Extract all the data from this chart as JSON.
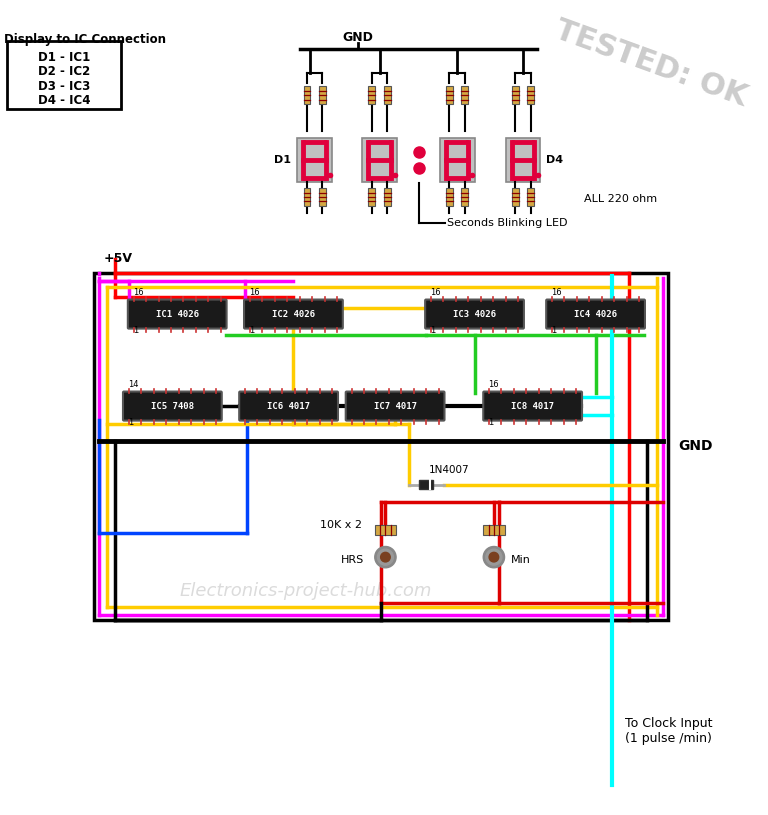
{
  "bg_color": "#ffffff",
  "ic_color": "#1a1a1a",
  "ic_text_color": "#ffffff",
  "display_color": "#e0003c",
  "resistor_body": "#d4a843",
  "watermark": "Electronics-project-hub.com",
  "tested_text": "TESTED: OK",
  "gnd_label": "GND",
  "vcc_label": "+5V",
  "all_ohm_label": "ALL 220 ohm",
  "seconds_led_label": "Seconds Blinking LED",
  "clock_input_label": "To Clock Input\n(1 pulse /min)",
  "gnd_right_label": "GND",
  "diode_label": "1N4007",
  "resistor_label": "10K x 2",
  "hrs_label": "HRS",
  "min_label": "Min",
  "display_label_left": "D1",
  "display_label_right": "D4",
  "ic_labels": [
    "IC1 4026",
    "IC2 4026",
    "IC3 4026",
    "IC4 4026",
    "IC5 7408",
    "IC6 4017",
    "IC7 4017",
    "IC8 4017"
  ],
  "connection_title": "Display to IC Connection",
  "connections": [
    "D1 - IC1",
    "D2 - IC2",
    "D3 - IC3",
    "D4 - IC4"
  ],
  "wire_lw": 2.5
}
